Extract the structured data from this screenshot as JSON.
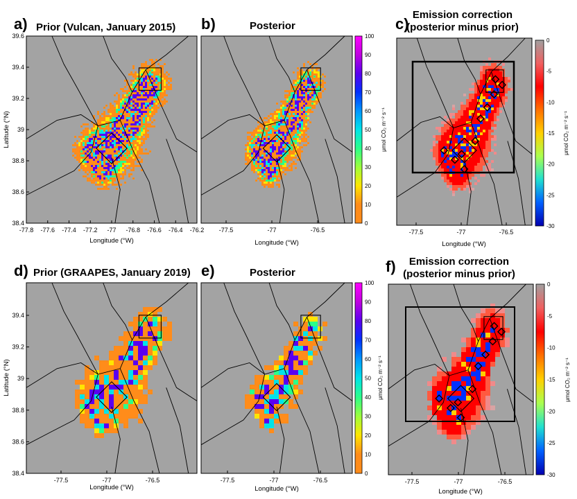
{
  "colors": {
    "background_grey": "#a3a3a3",
    "cb_hi_ramp": [
      "#ff8c1a",
      "#ff8c1a",
      "#ffe600",
      "#9cff3c",
      "#2bff8a",
      "#00e3e8",
      "#0096ff",
      "#0030ff",
      "#5a00f0",
      "#c000e0",
      "#ff00ff"
    ],
    "cb_diff_ramp": [
      "#a0a0a0",
      "#f06060",
      "#ff0000",
      "#ff7000",
      "#ffd000",
      "#aaff50",
      "#20e0d0",
      "#0060ff",
      "#0000b0"
    ]
  },
  "chart_data": [
    {
      "panel": "a)",
      "title": "Prior (Vulcan, January 2015)",
      "type": "heatmap",
      "xlabel": "Longitude (°W)",
      "ylabel": "Latitude (°N)",
      "xticks": [
        "-77.8",
        "-77.6",
        "-77.4",
        "-77.2",
        "-77",
        "-76.8",
        "-76.6",
        "-76.4",
        "-76.2"
      ],
      "yticks": [
        "39.6",
        "39.4",
        "39.2",
        "39",
        "38.8",
        "38.6",
        "38.4"
      ],
      "xlim": [
        -77.8,
        -76.2
      ],
      "ylim": [
        38.4,
        39.6
      ]
    },
    {
      "panel": "b)",
      "title": "Posterior",
      "type": "heatmap",
      "xlabel": "Longitude (°W)",
      "xticks": [
        "-77.5",
        "-77",
        "-76.5"
      ],
      "colorbar": {
        "label": "μmol CO₂ m⁻² s⁻¹",
        "ticks": [
          "100",
          "90",
          "80",
          "70",
          "60",
          "50",
          "40",
          "30",
          "20",
          "10",
          "0"
        ],
        "range": [
          0,
          100
        ]
      }
    },
    {
      "panel": "c)",
      "title_line1": "Emission correction",
      "title_line2": "(posterior minus prior)",
      "type": "heatmap",
      "xlabel": "Longitude (°W)",
      "xticks": [
        "-77.5",
        "-77",
        "-76.5"
      ],
      "colorbar": {
        "label": "μmol CO₂ m⁻² s⁻¹",
        "ticks": [
          "0",
          "-5",
          "-10",
          "-15",
          "-20",
          "-25",
          "-30"
        ],
        "range": [
          -30,
          0
        ]
      }
    },
    {
      "panel": "d)",
      "title": "Prior (GRAAPES, January 2019)",
      "type": "heatmap",
      "xlabel": "Longitude (°W)",
      "ylabel": "Latitude (°N)",
      "xticks": [
        "-77.5",
        "-77",
        "-76.5"
      ],
      "yticks": [
        "39.4",
        "39.2",
        "39",
        "38.8",
        "38.6",
        "38.4"
      ]
    },
    {
      "panel": "e)",
      "title": "Posterior",
      "type": "heatmap",
      "xlabel": "Longitude (°W)",
      "xticks": [
        "-77.5",
        "-77",
        "-76.5"
      ],
      "colorbar": {
        "label": "μmol CO₂ m⁻² s⁻¹",
        "ticks": [
          "100",
          "90",
          "80",
          "70",
          "60",
          "50",
          "40",
          "30",
          "20",
          "10",
          "0"
        ],
        "range": [
          0,
          100
        ]
      }
    },
    {
      "panel": "f)",
      "title_line1": "Emission correction",
      "title_line2": "(posterior minus prior)",
      "type": "heatmap",
      "xlabel": "Longitude (°W)",
      "xticks": [
        "-77.5",
        "-77",
        "-76.5"
      ],
      "colorbar": {
        "label": "μmol CO₂ m⁻² s⁻¹",
        "ticks": [
          "0",
          "-5",
          "-10",
          "-15",
          "-20",
          "-25",
          "-30"
        ],
        "range": [
          -30,
          0
        ]
      }
    }
  ]
}
